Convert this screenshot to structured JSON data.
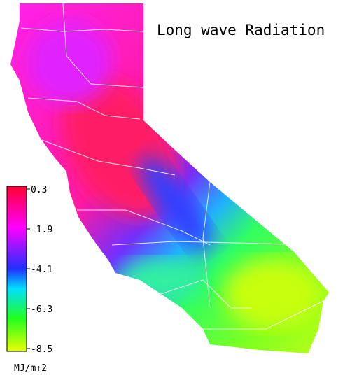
{
  "title": "Long wave Radiation",
  "colorbar": {
    "lim": [
      -8.5,
      0.3
    ],
    "ticks": [
      0.3,
      -1.9,
      -4.1,
      -6.3,
      -8.5
    ],
    "unit": "MJ/m↑2"
  }
}
